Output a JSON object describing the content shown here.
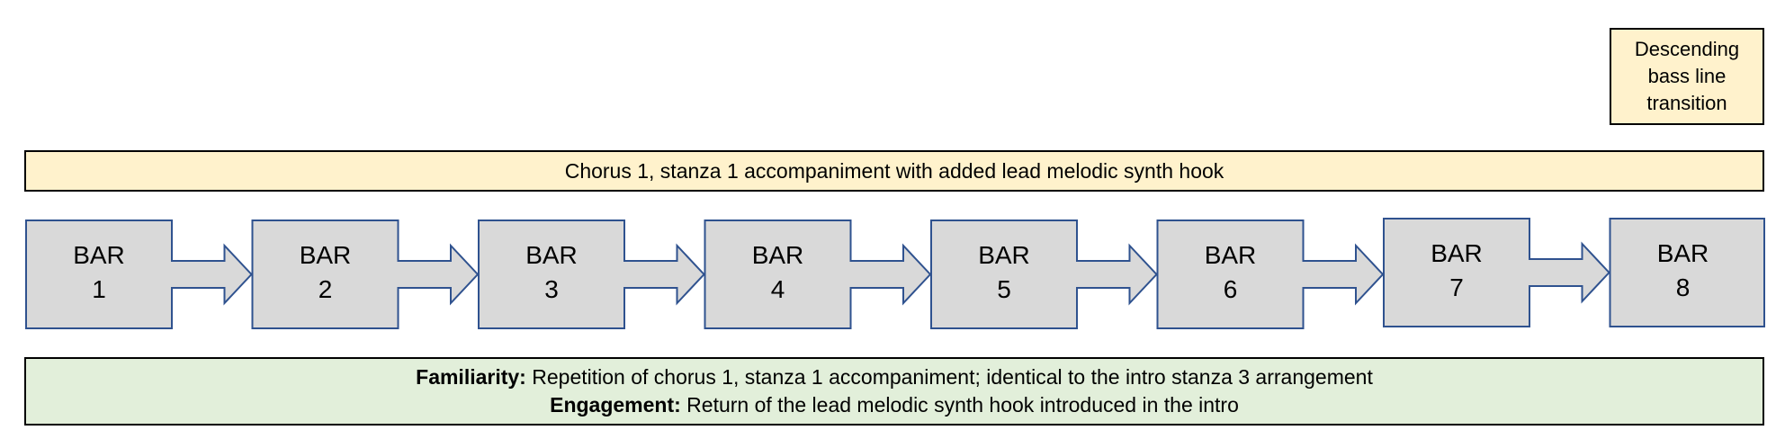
{
  "transition_note": {
    "lines": [
      "Descending",
      "bass line",
      "transition"
    ],
    "fill": "#fff2cc"
  },
  "header": {
    "text": "Chorus 1, stanza 1 accompaniment with added lead melodic synth hook",
    "fill": "#fff2cc"
  },
  "bars": [
    {
      "word": "BAR",
      "number": "1"
    },
    {
      "word": "BAR",
      "number": "2"
    },
    {
      "word": "BAR",
      "number": "3"
    },
    {
      "word": "BAR",
      "number": "4"
    },
    {
      "word": "BAR",
      "number": "5"
    },
    {
      "word": "BAR",
      "number": "6"
    },
    {
      "word": "BAR",
      "number": "7"
    },
    {
      "word": "BAR",
      "number": "8"
    }
  ],
  "bar_style": {
    "fill": "#d9d9d9",
    "stroke": "#2f528f"
  },
  "footer": {
    "familiarity_label": "Familiarity:",
    "familiarity_text": " Repetition of chorus 1, stanza 1 accompaniment; identical to the intro stanza 3 arrangement",
    "engagement_label": "Engagement:",
    "engagement_text": " Return of the lead melodic synth hook introduced in the intro",
    "fill": "#e2efda"
  }
}
